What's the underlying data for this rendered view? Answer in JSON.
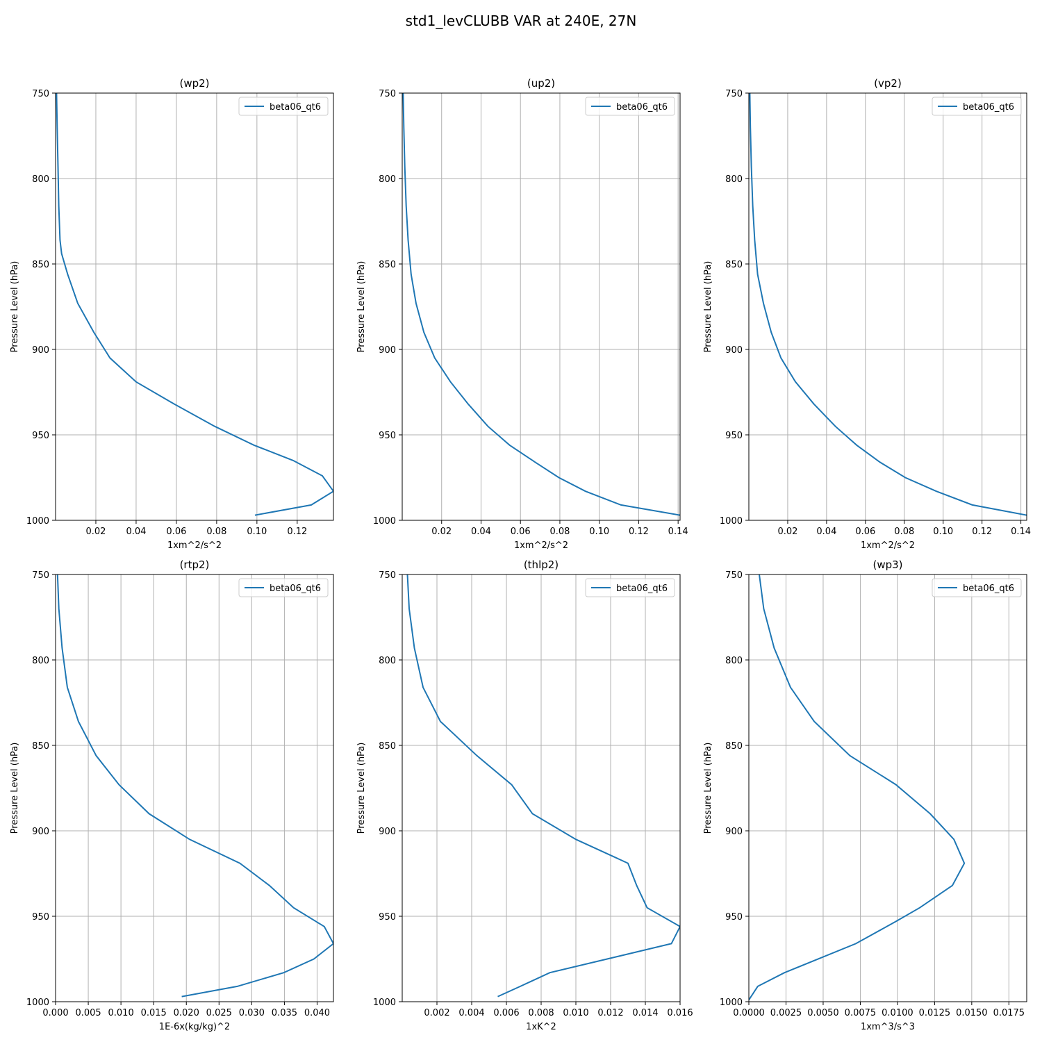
{
  "figure": {
    "title": "std1_levCLUBB VAR at 240E, 27N"
  },
  "colors": {
    "series": "#1f77b4",
    "grid": "#b0b0b0",
    "axes": "#000000",
    "legend_border": "#cccccc"
  },
  "chart_data": [
    {
      "type": "line",
      "title": "(wp2)",
      "xlabel": "1xm^2/s^2",
      "ylabel": "Pressure Level (hPa)",
      "xlim": [
        0.0,
        0.138
      ],
      "ylim": [
        1000,
        750
      ],
      "y_inverted": true,
      "xticks": [
        0.02,
        0.04,
        0.06,
        0.08,
        0.1,
        0.12
      ],
      "xtick_labels": [
        "0.02",
        "0.04",
        "0.06",
        "0.08",
        "0.10",
        "0.12"
      ],
      "yticks": [
        750,
        800,
        850,
        900,
        950,
        1000
      ],
      "ytick_labels": [
        "750",
        "800",
        "850",
        "900",
        "950",
        "1000"
      ],
      "grid": true,
      "legend": "top-right",
      "series": [
        {
          "name": "beta06_qt6",
          "x": [
            0.0005,
            0.0008,
            0.0012,
            0.0016,
            0.0022,
            0.003,
            0.006,
            0.011,
            0.019,
            0.027,
            0.04,
            0.059,
            0.079,
            0.0985,
            0.118,
            0.1325,
            0.138,
            0.127,
            0.099
          ],
          "y": [
            750,
            770,
            793,
            816,
            836,
            844,
            856,
            873,
            890,
            905,
            919,
            932,
            945,
            956,
            965,
            974,
            983,
            991,
            997
          ]
        }
      ]
    },
    {
      "type": "line",
      "title": "(up2)",
      "xlabel": "1xm^2/s^2",
      "ylabel": "Pressure Level (hPa)",
      "xlim": [
        0.0,
        0.141
      ],
      "ylim": [
        1000,
        750
      ],
      "y_inverted": true,
      "xticks": [
        0.02,
        0.04,
        0.06,
        0.08,
        0.1,
        0.12,
        0.14
      ],
      "xtick_labels": [
        "0.02",
        "0.04",
        "0.06",
        "0.08",
        "0.10",
        "0.12",
        "0.14"
      ],
      "yticks": [
        750,
        800,
        850,
        900,
        950,
        1000
      ],
      "ytick_labels": [
        "750",
        "800",
        "850",
        "900",
        "950",
        "1000"
      ],
      "grid": true,
      "legend": "top-right",
      "series": [
        {
          "name": "beta06_qt6",
          "x": [
            0.0005,
            0.0008,
            0.0013,
            0.002,
            0.003,
            0.0045,
            0.007,
            0.011,
            0.0165,
            0.0245,
            0.0335,
            0.0435,
            0.0545,
            0.0675,
            0.0795,
            0.093,
            0.111,
            0.141
          ],
          "y": [
            750,
            770,
            793,
            816,
            836,
            856,
            873,
            890,
            905,
            919,
            932,
            945,
            956,
            966,
            975,
            983,
            991,
            997
          ]
        }
      ]
    },
    {
      "type": "line",
      "title": "(vp2)",
      "xlabel": "1xm^2/s^2",
      "ylabel": "Pressure Level (hPa)",
      "xlim": [
        0.0,
        0.143
      ],
      "ylim": [
        1000,
        750
      ],
      "y_inverted": true,
      "xticks": [
        0.02,
        0.04,
        0.06,
        0.08,
        0.1,
        0.12,
        0.14
      ],
      "xtick_labels": [
        "0.02",
        "0.04",
        "0.06",
        "0.08",
        "0.10",
        "0.12",
        "0.14"
      ],
      "yticks": [
        750,
        800,
        850,
        900,
        950,
        1000
      ],
      "ytick_labels": [
        "750",
        "800",
        "850",
        "900",
        "950",
        "1000"
      ],
      "grid": true,
      "legend": "top-right",
      "series": [
        {
          "name": "beta06_qt6",
          "x": [
            0.0005,
            0.0008,
            0.0013,
            0.002,
            0.003,
            0.0045,
            0.0075,
            0.0115,
            0.0165,
            0.024,
            0.0335,
            0.0445,
            0.0555,
            0.0675,
            0.0805,
            0.0965,
            0.115,
            0.143
          ],
          "y": [
            750,
            770,
            793,
            816,
            836,
            856,
            873,
            890,
            905,
            919,
            932,
            945,
            956,
            966,
            975,
            983,
            991,
            997
          ]
        }
      ]
    },
    {
      "type": "line",
      "title": "(rtp2)",
      "xlabel": "1E-6x(kg/kg)^2",
      "ylabel": "Pressure Level (hPa)",
      "xlim": [
        0.0,
        0.0425
      ],
      "ylim": [
        1000,
        750
      ],
      "y_inverted": true,
      "xticks": [
        0.0,
        0.005,
        0.01,
        0.015,
        0.02,
        0.025,
        0.03,
        0.035,
        0.04
      ],
      "xtick_labels": [
        "0.000",
        "0.005",
        "0.010",
        "0.015",
        "0.020",
        "0.025",
        "0.030",
        "0.035",
        "0.040"
      ],
      "yticks": [
        750,
        800,
        850,
        900,
        950,
        1000
      ],
      "ytick_labels": [
        "750",
        "800",
        "850",
        "900",
        "950",
        "1000"
      ],
      "grid": true,
      "legend": "top-right",
      "series": [
        {
          "name": "beta06_qt6",
          "x": [
            0.0003,
            0.0005,
            0.001,
            0.0018,
            0.0035,
            0.0062,
            0.0097,
            0.0143,
            0.0205,
            0.0282,
            0.0327,
            0.0364,
            0.0411,
            0.0425,
            0.0395,
            0.0349,
            0.0278,
            0.0193
          ],
          "y": [
            750,
            770,
            793,
            816,
            836,
            856,
            873,
            890,
            905,
            919,
            932,
            945,
            956,
            966,
            975,
            983,
            991,
            997
          ]
        }
      ]
    },
    {
      "type": "line",
      "title": "(thlp2)",
      "xlabel": "1xK^2",
      "ylabel": "Pressure Level (hPa)",
      "xlim": [
        0.0,
        0.016
      ],
      "ylim": [
        1000,
        750
      ],
      "y_inverted": true,
      "xticks": [
        0.002,
        0.004,
        0.006,
        0.008,
        0.01,
        0.012,
        0.014,
        0.016
      ],
      "xtick_labels": [
        "0.002",
        "0.004",
        "0.006",
        "0.008",
        "0.010",
        "0.012",
        "0.014",
        "0.016"
      ],
      "yticks": [
        750,
        800,
        850,
        900,
        950,
        1000
      ],
      "ytick_labels": [
        "750",
        "800",
        "850",
        "900",
        "950",
        "1000"
      ],
      "grid": true,
      "legend": "top-right",
      "series": [
        {
          "name": "beta06_qt6",
          "x": [
            0.0003,
            0.0004,
            0.0007,
            0.0012,
            0.0022,
            0.0043,
            0.0063,
            0.0075,
            0.01,
            0.013,
            0.0135,
            0.0141,
            0.016,
            0.0155,
            0.0085,
            0.0068,
            0.0055
          ],
          "y": [
            750,
            770,
            793,
            816,
            836,
            856,
            873,
            890,
            905,
            919,
            932,
            945,
            956,
            966,
            983,
            991,
            997
          ]
        }
      ]
    },
    {
      "type": "line",
      "title": "(wp3)",
      "xlabel": "1xm^3/s^3",
      "ylabel": "Pressure Level (hPa)",
      "xlim": [
        0.0,
        0.0187
      ],
      "ylim": [
        1000,
        750
      ],
      "y_inverted": true,
      "xticks": [
        0.0,
        0.0025,
        0.005,
        0.0075,
        0.01,
        0.0125,
        0.015,
        0.0175
      ],
      "xtick_labels": [
        "0.0000",
        "0.0025",
        "0.0050",
        "0.0075",
        "0.0100",
        "0.0125",
        "0.0150",
        "0.0175"
      ],
      "yticks": [
        750,
        800,
        850,
        900,
        950,
        1000
      ],
      "ytick_labels": [
        "750",
        "800",
        "850",
        "900",
        "950",
        "1000"
      ],
      "grid": true,
      "legend": "top-right",
      "series": [
        {
          "name": "beta06_qt6",
          "x": [
            0.0007,
            0.001,
            0.0017,
            0.0028,
            0.0044,
            0.0068,
            0.0099,
            0.0122,
            0.0138,
            0.0145,
            0.0137,
            0.0115,
            0.0099,
            0.0072,
            0.0024,
            0.0006,
            0.0
          ],
          "y": [
            750,
            770,
            793,
            816,
            836,
            856,
            873,
            890,
            905,
            919,
            932,
            945,
            953,
            966,
            983,
            991,
            999
          ]
        }
      ]
    }
  ]
}
